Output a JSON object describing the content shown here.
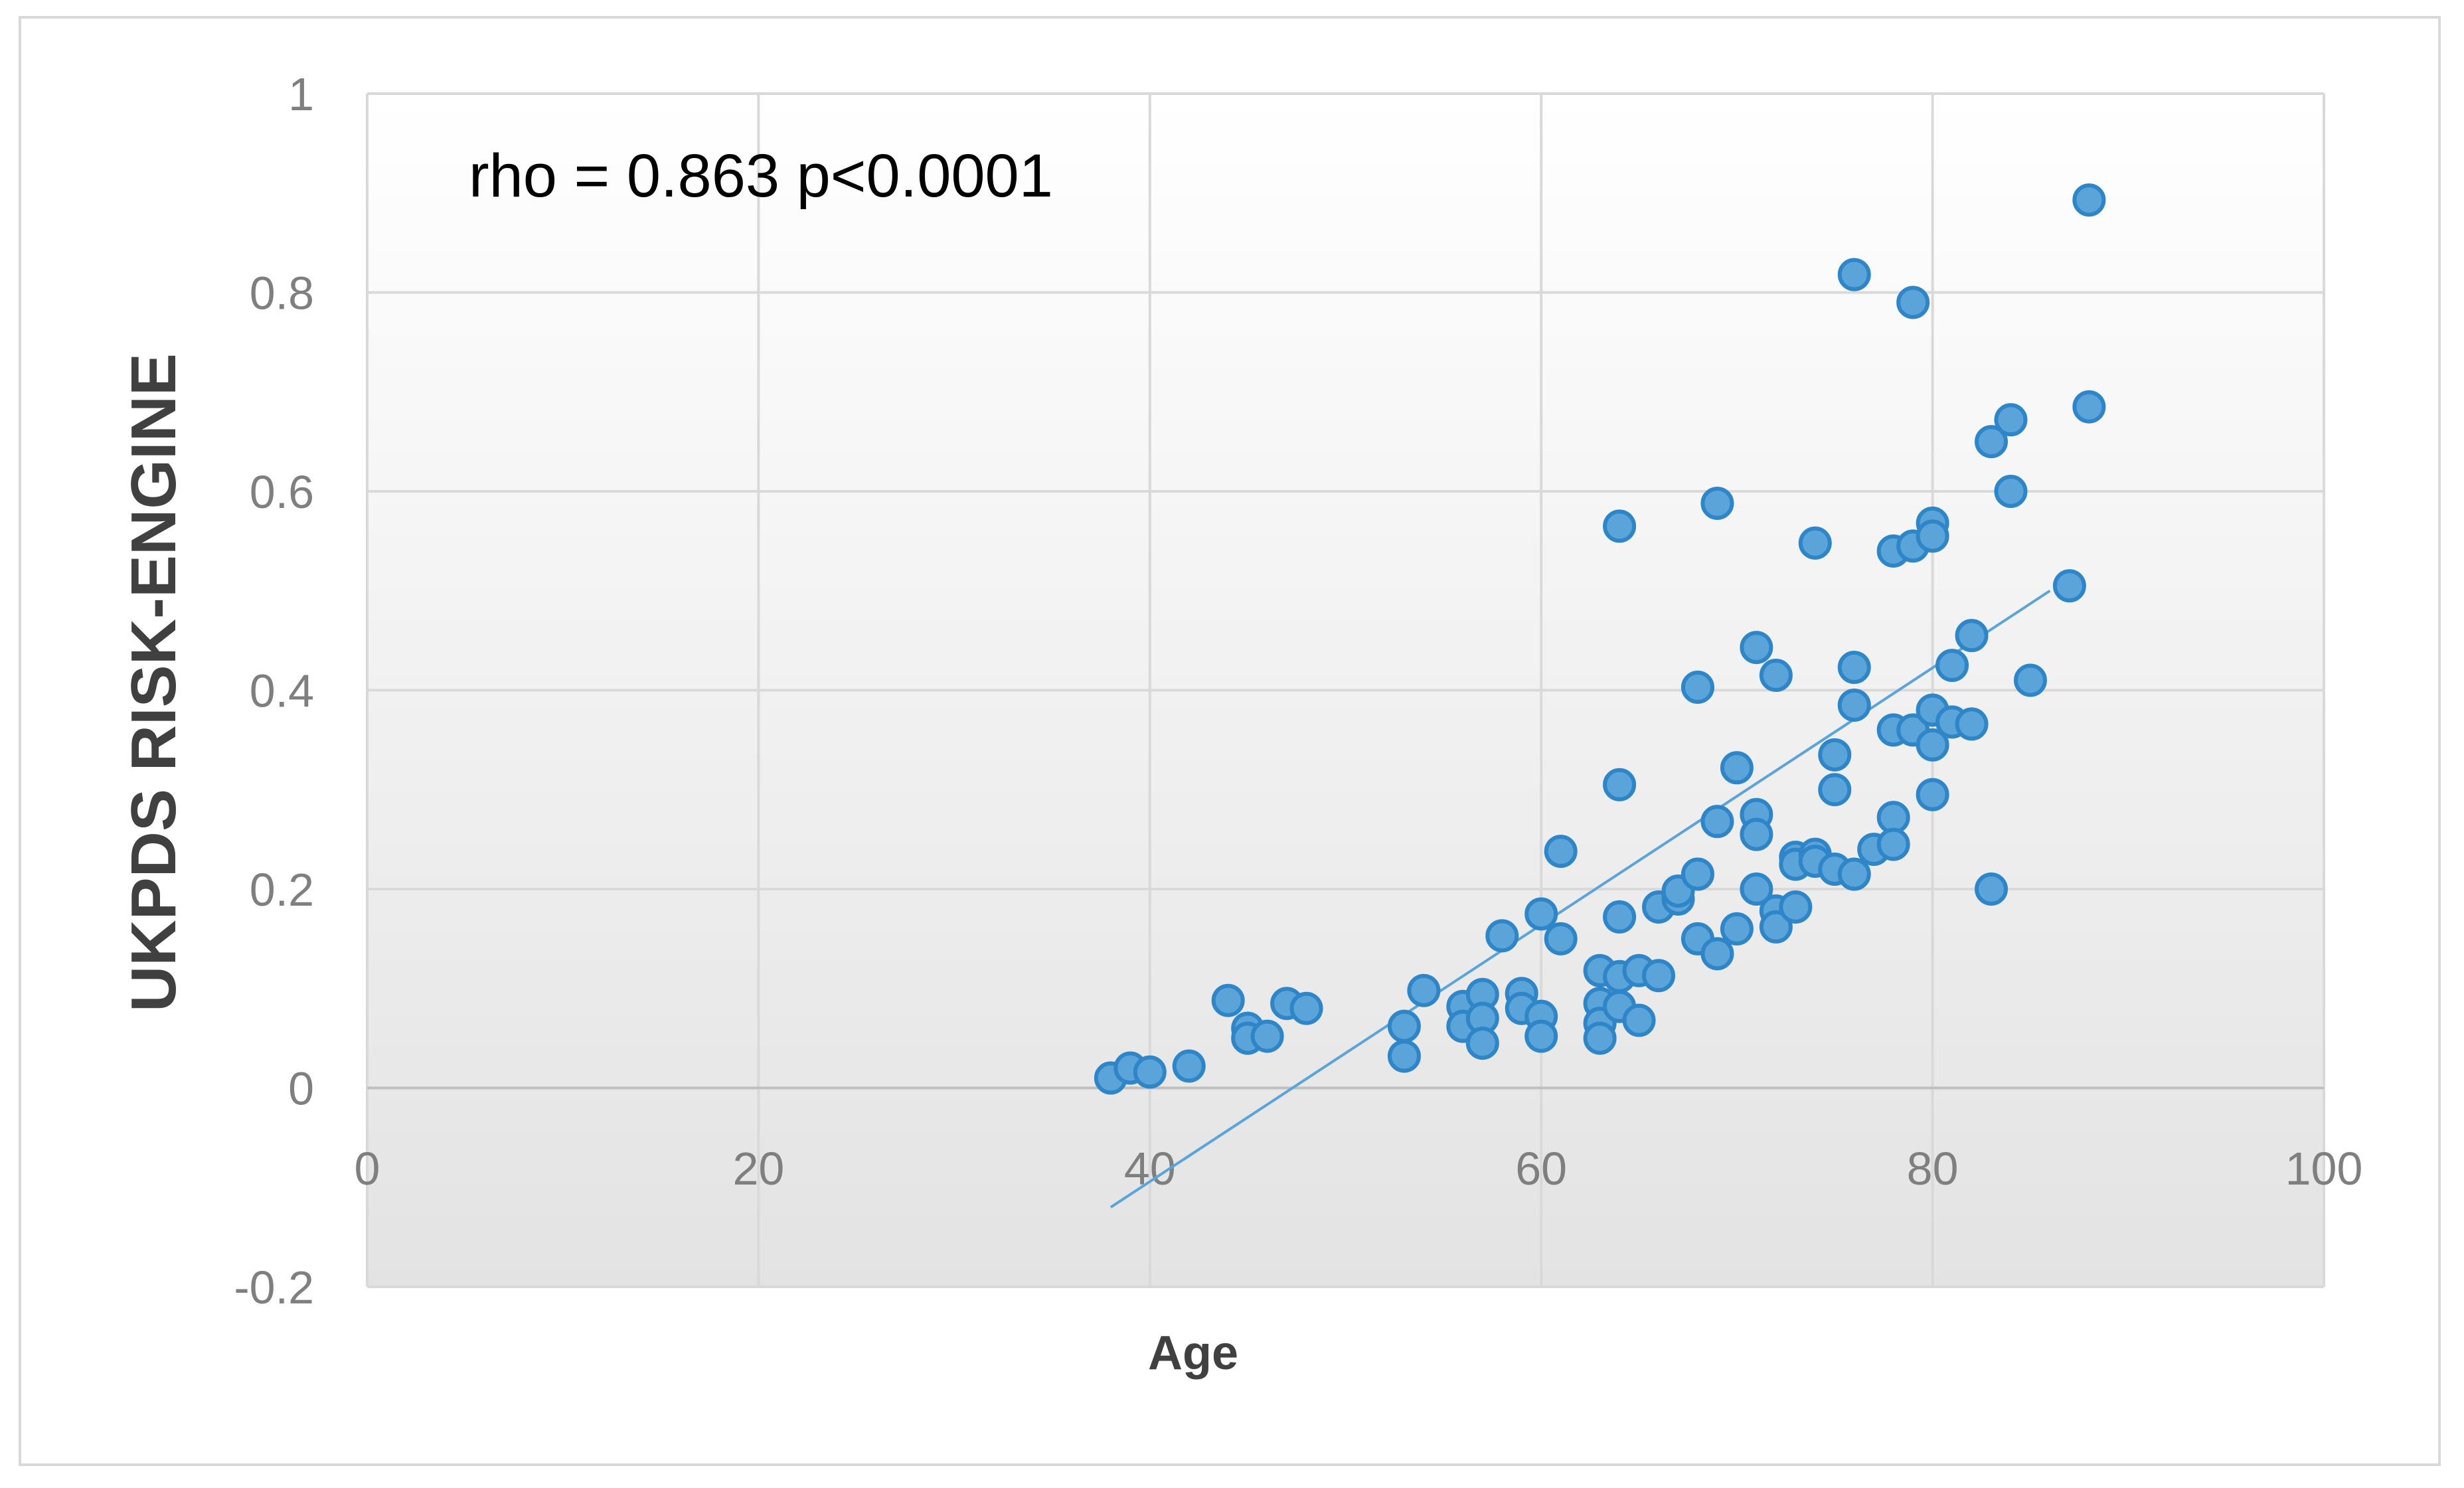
{
  "chart_data": {
    "type": "scatter",
    "title": "",
    "xlabel": "Age",
    "ylabel": "UKPDS RISK-ENGINE",
    "xlim": [
      0,
      100
    ],
    "ylim": [
      -0.2,
      1
    ],
    "x_ticks": [
      "0",
      "20",
      "40",
      "60",
      "80",
      "100"
    ],
    "y_ticks": [
      "1",
      "0.8",
      "0.6",
      "0.4",
      "0.2",
      "0",
      "-0.2"
    ],
    "grid": true,
    "legend": "none",
    "annotation": "rho = 0.863 p<0.0001",
    "marker_color": "#5BA4D9",
    "marker_edge_color": "#2E86C8",
    "trendline_color": "#5BA4D9",
    "trendline": {
      "x": [
        38,
        86
      ],
      "y": [
        -0.12,
        0.5
      ]
    },
    "points": [
      [
        38,
        0.01
      ],
      [
        39,
        0.02
      ],
      [
        40,
        0.016
      ],
      [
        42,
        0.022
      ],
      [
        44,
        0.088
      ],
      [
        45,
        0.06
      ],
      [
        45,
        0.05
      ],
      [
        46,
        0.052
      ],
      [
        47,
        0.085
      ],
      [
        48,
        0.08
      ],
      [
        53,
        0.062
      ],
      [
        53,
        0.032
      ],
      [
        54,
        0.098
      ],
      [
        56,
        0.082
      ],
      [
        56,
        0.062
      ],
      [
        57,
        0.094
      ],
      [
        57,
        0.07
      ],
      [
        57,
        0.045
      ],
      [
        58,
        0.153
      ],
      [
        59,
        0.095
      ],
      [
        59,
        0.08
      ],
      [
        60,
        0.072
      ],
      [
        60,
        0.052
      ],
      [
        60,
        0.175
      ],
      [
        61,
        0.238
      ],
      [
        61,
        0.15
      ],
      [
        63,
        0.118
      ],
      [
        63,
        0.085
      ],
      [
        63,
        0.065
      ],
      [
        63,
        0.05
      ],
      [
        64,
        0.565
      ],
      [
        64,
        0.305
      ],
      [
        64,
        0.172
      ],
      [
        64,
        0.112
      ],
      [
        64,
        0.082
      ],
      [
        65,
        0.118
      ],
      [
        65,
        0.068
      ],
      [
        66,
        0.182
      ],
      [
        66,
        0.113
      ],
      [
        67,
        0.19
      ],
      [
        67,
        0.198
      ],
      [
        68,
        0.403
      ],
      [
        68,
        0.215
      ],
      [
        68,
        0.15
      ],
      [
        69,
        0.588
      ],
      [
        69,
        0.268
      ],
      [
        69,
        0.135
      ],
      [
        70,
        0.322
      ],
      [
        70,
        0.16
      ],
      [
        71,
        0.443
      ],
      [
        71,
        0.275
      ],
      [
        71,
        0.255
      ],
      [
        71,
        0.2
      ],
      [
        72,
        0.415
      ],
      [
        72,
        0.178
      ],
      [
        72,
        0.162
      ],
      [
        73,
        0.232
      ],
      [
        73,
        0.225
      ],
      [
        73,
        0.182
      ],
      [
        74,
        0.548
      ],
      [
        74,
        0.235
      ],
      [
        74,
        0.228
      ],
      [
        75,
        0.335
      ],
      [
        75,
        0.3
      ],
      [
        75,
        0.22
      ],
      [
        76,
        0.818
      ],
      [
        76,
        0.423
      ],
      [
        76,
        0.385
      ],
      [
        76,
        0.215
      ],
      [
        77,
        0.24
      ],
      [
        78,
        0.54
      ],
      [
        78,
        0.36
      ],
      [
        78,
        0.272
      ],
      [
        78,
        0.245
      ],
      [
        79,
        0.79
      ],
      [
        79,
        0.545
      ],
      [
        79,
        0.36
      ],
      [
        80,
        0.568
      ],
      [
        80,
        0.555
      ],
      [
        80,
        0.38
      ],
      [
        80,
        0.345
      ],
      [
        80,
        0.295
      ],
      [
        81,
        0.425
      ],
      [
        81,
        0.368
      ],
      [
        82,
        0.455
      ],
      [
        82,
        0.366
      ],
      [
        83,
        0.65
      ],
      [
        83,
        0.2
      ],
      [
        84,
        0.672
      ],
      [
        84,
        0.6
      ],
      [
        85,
        0.41
      ],
      [
        87,
        0.505
      ],
      [
        88,
        0.893
      ],
      [
        88,
        0.685
      ]
    ]
  }
}
